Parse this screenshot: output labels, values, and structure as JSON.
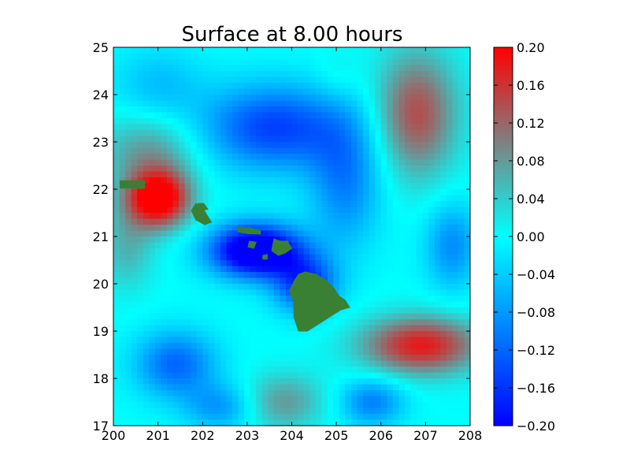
{
  "chart_data": {
    "type": "heatmap",
    "title": "Surface at 8.00 hours",
    "xlabel": "",
    "ylabel": "",
    "xlim": [
      200,
      208
    ],
    "ylim": [
      17,
      25
    ],
    "x_ticks": [
      "200",
      "201",
      "202",
      "203",
      "204",
      "205",
      "206",
      "207",
      "208"
    ],
    "y_ticks": [
      "17",
      "18",
      "19",
      "20",
      "21",
      "22",
      "23",
      "24",
      "25"
    ],
    "colorbar": {
      "range": [
        -0.2,
        0.2
      ],
      "ticks": [
        "0.20",
        "0.16",
        "0.12",
        "0.08",
        "0.04",
        "0.00",
        "−0.04",
        "−0.08",
        "−0.12",
        "−0.16",
        "−0.20"
      ],
      "ticks_values": [
        0.2,
        0.16,
        0.12,
        0.08,
        0.04,
        0.0,
        -0.04,
        -0.08,
        -0.12,
        -0.16,
        -0.2
      ],
      "colors": [
        {
          "v": -0.2,
          "c": "#0000ff"
        },
        {
          "v": -0.1,
          "c": "#0080ff"
        },
        {
          "v": 0.0,
          "c": "#00ffff"
        },
        {
          "v": 0.1,
          "c": "#808080"
        },
        {
          "v": 0.2,
          "c": "#ff0000"
        }
      ]
    },
    "land_color": "#3a8034",
    "field_features": [
      {
        "x": 201.0,
        "y": 21.8,
        "amp": 0.24,
        "sx": 0.7,
        "sy": 0.6
      },
      {
        "x": 200.8,
        "y": 22.8,
        "amp": 0.08,
        "sx": 1.1,
        "sy": 0.8
      },
      {
        "x": 200.3,
        "y": 20.8,
        "amp": 0.06,
        "sx": 0.6,
        "sy": 0.9
      },
      {
        "x": 206.9,
        "y": 18.7,
        "amp": 0.18,
        "sx": 1.3,
        "sy": 0.6
      },
      {
        "x": 206.8,
        "y": 23.6,
        "amp": 0.14,
        "sx": 0.9,
        "sy": 1.3
      },
      {
        "x": 203.8,
        "y": 17.5,
        "amp": 0.08,
        "sx": 0.9,
        "sy": 0.6
      },
      {
        "x": 203.2,
        "y": 20.7,
        "amp": -0.28,
        "sx": 1.0,
        "sy": 0.55
      },
      {
        "x": 204.3,
        "y": 20.0,
        "amp": -0.16,
        "sx": 0.7,
        "sy": 0.6
      },
      {
        "x": 203.6,
        "y": 23.3,
        "amp": -0.15,
        "sx": 1.6,
        "sy": 0.9
      },
      {
        "x": 205.2,
        "y": 22.2,
        "amp": -0.1,
        "sx": 0.8,
        "sy": 1.4
      },
      {
        "x": 201.4,
        "y": 18.3,
        "amp": -0.12,
        "sx": 0.9,
        "sy": 0.7
      },
      {
        "x": 207.6,
        "y": 20.8,
        "amp": -0.09,
        "sx": 0.6,
        "sy": 0.9
      },
      {
        "x": 202.4,
        "y": 17.4,
        "amp": -0.08,
        "sx": 0.8,
        "sy": 0.5
      },
      {
        "x": 205.8,
        "y": 17.5,
        "amp": -0.1,
        "sx": 0.7,
        "sy": 0.5
      },
      {
        "x": 205.0,
        "y": 24.4,
        "amp": 0.02,
        "sx": 0.5,
        "sy": 0.6
      },
      {
        "x": 201.0,
        "y": 24.2,
        "amp": -0.05,
        "sx": 1.0,
        "sy": 0.8
      }
    ],
    "islands": [
      {
        "name": "Hawaii",
        "points": [
          [
            204.3,
            20.25
          ],
          [
            204.55,
            20.2
          ],
          [
            204.8,
            20.05
          ],
          [
            204.95,
            19.9
          ],
          [
            205.05,
            19.75
          ],
          [
            205.2,
            19.65
          ],
          [
            205.3,
            19.5
          ],
          [
            205.1,
            19.45
          ],
          [
            204.85,
            19.3
          ],
          [
            204.6,
            19.15
          ],
          [
            204.35,
            19.0
          ],
          [
            204.15,
            19.0
          ],
          [
            204.05,
            19.3
          ],
          [
            204.05,
            19.6
          ],
          [
            203.95,
            19.85
          ],
          [
            204.05,
            20.05
          ],
          [
            204.15,
            20.2
          ]
        ]
      },
      {
        "name": "Maui",
        "points": [
          [
            203.6,
            20.95
          ],
          [
            203.75,
            20.9
          ],
          [
            203.9,
            20.9
          ],
          [
            204.0,
            20.75
          ],
          [
            203.85,
            20.65
          ],
          [
            203.7,
            20.6
          ],
          [
            203.55,
            20.7
          ]
        ]
      },
      {
        "name": "Molokai",
        "points": [
          [
            202.8,
            21.2
          ],
          [
            203.05,
            21.18
          ],
          [
            203.3,
            21.12
          ],
          [
            203.3,
            21.05
          ],
          [
            203.0,
            21.06
          ],
          [
            202.78,
            21.1
          ]
        ]
      },
      {
        "name": "Oahu",
        "points": [
          [
            201.85,
            21.7
          ],
          [
            202.0,
            21.6
          ],
          [
            202.2,
            21.3
          ],
          [
            202.05,
            21.25
          ],
          [
            201.85,
            21.35
          ],
          [
            201.75,
            21.55
          ]
        ]
      },
      {
        "name": "Kauai",
        "points": [
          [
            201.9,
            21.7
          ],
          [
            202.02,
            21.7
          ],
          [
            202.12,
            21.58
          ],
          [
            202.0,
            21.55
          ],
          [
            201.92,
            21.62
          ]
        ]
      },
      {
        "name": "Lanai",
        "points": [
          [
            203.05,
            20.9
          ],
          [
            203.2,
            20.88
          ],
          [
            203.15,
            20.75
          ],
          [
            203.02,
            20.78
          ]
        ]
      },
      {
        "name": "Kahoolawe",
        "points": [
          [
            203.35,
            20.6
          ],
          [
            203.45,
            20.62
          ],
          [
            203.45,
            20.52
          ],
          [
            203.35,
            20.52
          ]
        ]
      },
      {
        "name": "Niihau",
        "points": [
          [
            200.15,
            22.18
          ],
          [
            200.7,
            22.18
          ],
          [
            200.7,
            22.02
          ],
          [
            200.15,
            22.02
          ]
        ]
      }
    ]
  }
}
